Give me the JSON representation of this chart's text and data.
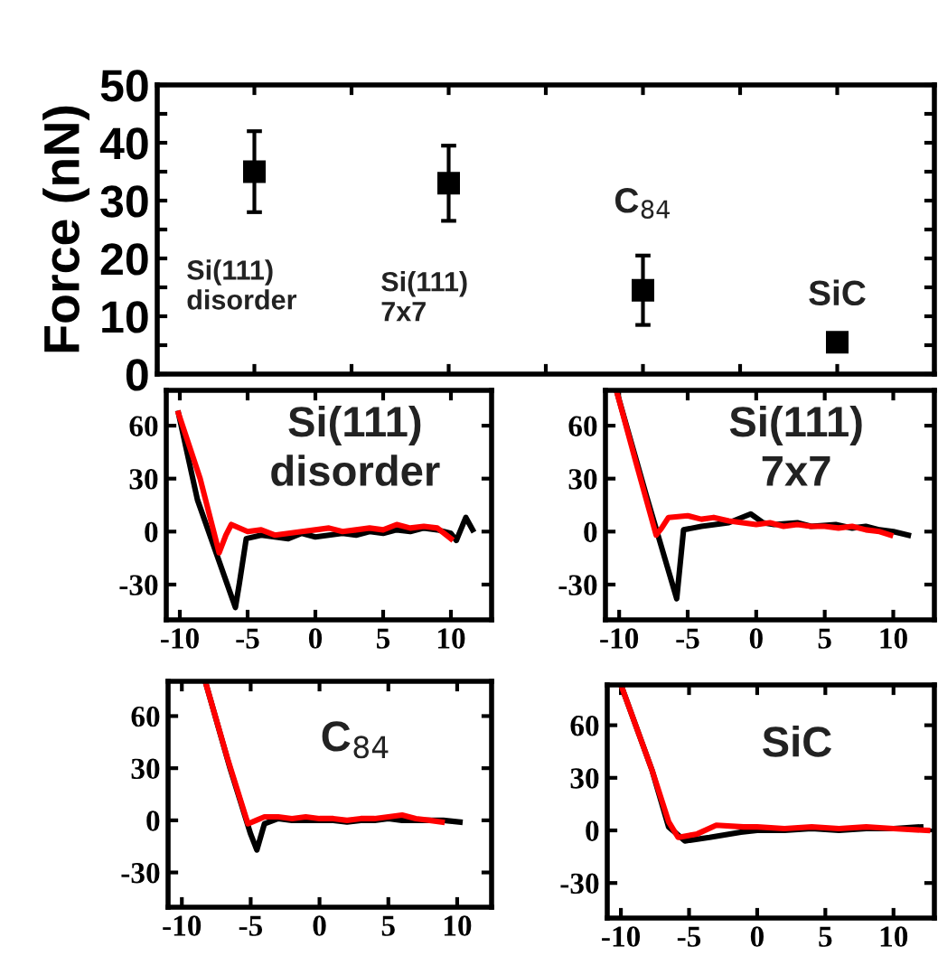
{
  "chart_data": [
    {
      "type": "scatter",
      "categories": [
        null,
        null,
        null,
        null
      ],
      "ylabel": "Force (nN)",
      "ylim": [
        0,
        50
      ],
      "yticks": [
        0,
        {
          "value": 5,
          "label": null
        },
        10,
        {
          "value": 15,
          "label": null
        },
        20,
        {
          "value": 25,
          "label": null
        },
        30,
        {
          "value": 35,
          "label": null
        },
        40,
        {
          "value": 45,
          "label": null
        },
        50
      ],
      "series": [
        {
          "color": "#000000",
          "values": [
            35,
            33,
            14.5,
            5.5
          ],
          "errors": [
            [
              28,
              42
            ],
            [
              26.5,
              39.5
            ],
            [
              8.5,
              20.5
            ],
            null
          ]
        }
      ],
      "marker": "square",
      "grid": false,
      "legend": false,
      "annotations": [
        "Si(111)\ndisorder",
        "Si(111)\n7x7",
        "C$_{84}$",
        "SiC"
      ]
    },
    {
      "type": "line",
      "title": "Si(111)\ndisorder",
      "xlim": [
        -11,
        13
      ],
      "ylim": [
        -50,
        80
      ],
      "xticks": [
        -10,
        -5,
        0,
        5,
        10
      ],
      "yticks": [
        -30,
        0,
        30,
        60
      ],
      "grid": false,
      "tick_labels": "xy",
      "series": [
        {
          "color": "#000000",
          "x": [
            -10.1,
            -8.7,
            -5.9,
            -5.6,
            -5.1,
            -4,
            -3,
            -2,
            -1,
            0,
            1,
            2,
            3,
            4,
            5,
            6,
            7,
            8,
            9,
            10,
            10.4,
            11.1,
            11.6
          ],
          "values": [
            67,
            18,
            -43,
            -29,
            -4,
            -2,
            -3,
            -4,
            -1,
            -3,
            -2,
            -1,
            -2,
            0,
            -1,
            1,
            0,
            2,
            1,
            -1,
            -5,
            8,
            1
          ]
        },
        {
          "color": "#ff0000",
          "x": [
            -10.1,
            -8.5,
            -7.1,
            -6.6,
            -6.2,
            -5,
            -4,
            -3,
            -2,
            -1,
            0,
            1,
            2,
            3,
            4,
            5,
            6,
            7,
            8,
            9,
            10
          ],
          "values": [
            67,
            30,
            -12,
            -2,
            4,
            0,
            1,
            -2,
            -1,
            0,
            1,
            2,
            0,
            1,
            2,
            1,
            4,
            2,
            3,
            2,
            -4
          ]
        }
      ]
    },
    {
      "type": "line",
      "title": "Si(111)\n7x7",
      "xlim": [
        -11,
        13
      ],
      "ylim": [
        -50,
        80
      ],
      "xticks": [
        -10,
        -5,
        0,
        5,
        10
      ],
      "yticks": [
        -30,
        0,
        30,
        60
      ],
      "grid": false,
      "tick_labels": "xy",
      "series": [
        {
          "color": "#000000",
          "x": [
            -10.2,
            -8,
            -5.8,
            -5.3,
            -4,
            -3,
            -2,
            -0.4,
            0.5,
            1.3,
            3,
            4,
            5.8,
            7,
            8,
            9,
            10,
            11.1
          ],
          "values": [
            80,
            20,
            -38,
            1,
            3,
            4,
            5,
            10,
            5,
            4,
            5,
            3,
            4,
            2,
            3,
            1,
            0,
            -2
          ]
        },
        {
          "color": "#ff0000",
          "x": [
            -10.2,
            -8.8,
            -7.3,
            -6.9,
            -6.4,
            -5,
            -4,
            -3.1,
            -2,
            -1,
            0,
            1,
            2,
            3,
            4,
            5,
            6,
            7,
            8,
            9,
            9.8
          ],
          "values": [
            80,
            40,
            -2,
            2,
            8,
            9,
            7,
            8,
            6,
            5,
            4,
            5,
            3,
            4,
            3,
            3,
            2,
            3,
            1,
            0,
            -2
          ]
        }
      ]
    },
    {
      "type": "line",
      "title": "C$_{84}$",
      "xlim": [
        -11,
        12.5
      ],
      "ylim": [
        -50,
        80
      ],
      "xticks": [
        -10,
        -5,
        0,
        5,
        10
      ],
      "yticks": [
        -30,
        0,
        30,
        60
      ],
      "grid": false,
      "tick_labels": "xy",
      "series": [
        {
          "color": "#000000",
          "x": [
            -8.3,
            -6.5,
            -5,
            -4.55,
            -4,
            -3,
            -2,
            -1,
            0,
            1,
            2,
            3,
            4,
            5,
            6,
            7,
            8,
            9,
            10.2
          ],
          "values": [
            80,
            30,
            -8,
            -17,
            -2,
            1,
            0,
            0,
            0,
            0,
            -1,
            0,
            0,
            1,
            0,
            0,
            0,
            0,
            -1
          ]
        },
        {
          "color": "#ff0000",
          "x": [
            -8.3,
            -6.7,
            -5.2,
            -4.6,
            -4,
            -3,
            -2,
            -1,
            0,
            1,
            2,
            3,
            4,
            5,
            6,
            7,
            8,
            8.9
          ],
          "values": [
            80,
            36,
            -2,
            0,
            2,
            2,
            1,
            2,
            1,
            1,
            0,
            1,
            1,
            2,
            3,
            1,
            0,
            -1
          ]
        }
      ]
    },
    {
      "type": "line",
      "title": "SiC",
      "xlim": [
        -11,
        13
      ],
      "ylim": [
        -50,
        83
      ],
      "xticks": [
        -10,
        -5,
        0,
        5,
        10
      ],
      "yticks": [
        -30,
        0,
        30,
        60
      ],
      "grid": false,
      "tick_labels": "xy",
      "series": [
        {
          "color": "#000000",
          "x": [
            -9.9,
            -7.7,
            -6.5,
            -5.3,
            -3.5,
            -1.2,
            0,
            2,
            4,
            6,
            8,
            10,
            12
          ],
          "values": [
            81,
            34,
            2,
            -6,
            -4,
            -1,
            0,
            0,
            1,
            0,
            1,
            1,
            2
          ]
        },
        {
          "color": "#ff0000",
          "x": [
            -9.9,
            -7.7,
            -6.5,
            -5.8,
            -4.4,
            -3,
            -1,
            0,
            2,
            4,
            6,
            8,
            10,
            12.5
          ],
          "values": [
            81,
            34,
            5,
            -4,
            -2,
            3,
            2,
            2,
            1,
            2,
            1,
            2,
            1,
            0
          ]
        }
      ]
    }
  ]
}
